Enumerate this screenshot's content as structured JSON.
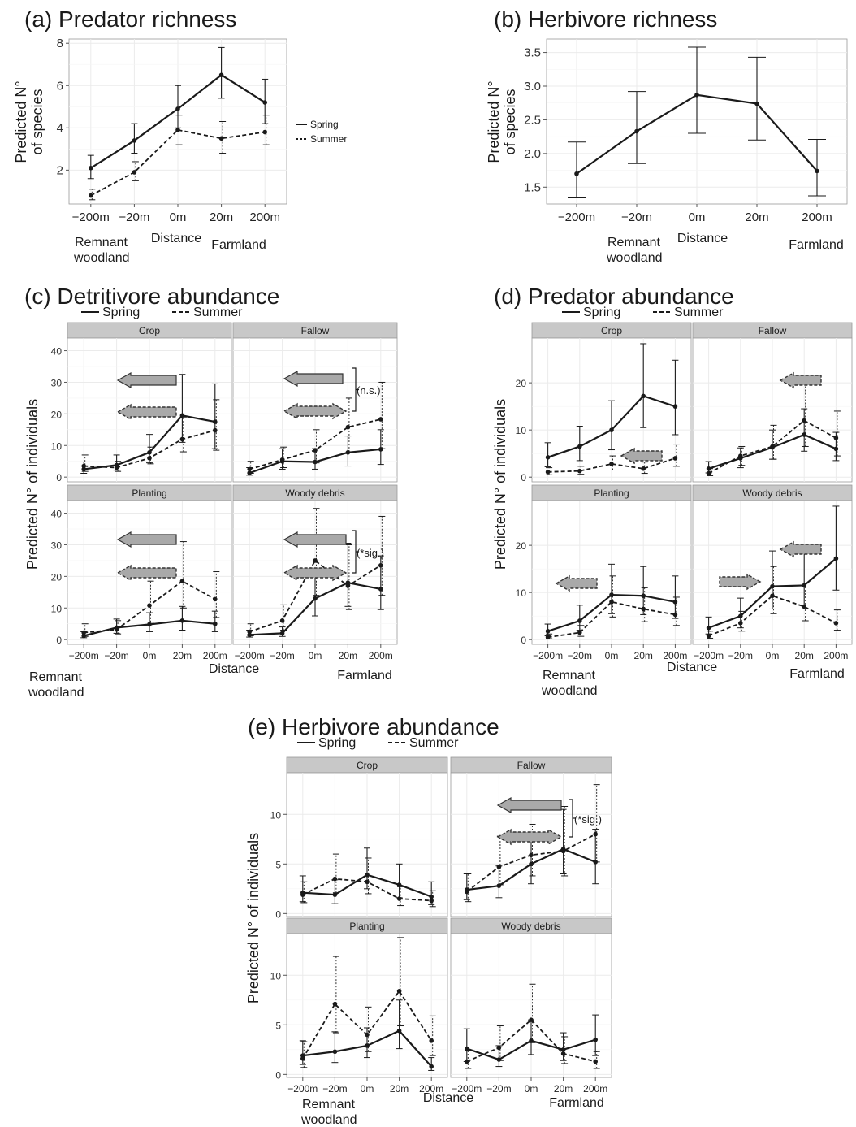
{
  "styles": {
    "spring_color": "#1a1a1a",
    "summer_color": "#1a1a1a",
    "grid_color": "#ebebeb",
    "panel_bg": "#ffffff",
    "strip_bg": "#c8c8c8",
    "arrow_fill": "#a9a9a9"
  },
  "chart_data": [
    {
      "id": "a",
      "type": "line",
      "title": "(a) Predator richness",
      "ylabel": "Predicted N° of species",
      "xlabel": "Distance",
      "x_note_left": "Remnant woodland",
      "x_note_right": "Farmland",
      "categories": [
        "−200m",
        "−20m",
        "0m",
        "20m",
        "200m"
      ],
      "ylim": [
        0.4,
        8.2
      ],
      "yticks": [
        2,
        4,
        6,
        8
      ],
      "ytick_labels": [
        "2",
        "4",
        "6",
        "8"
      ],
      "legend": {
        "position": "right",
        "entries": [
          "Spring",
          "Summer"
        ]
      },
      "series": [
        {
          "name": "Spring",
          "dash": false,
          "values": [
            2.1,
            3.4,
            4.9,
            6.5,
            5.2
          ],
          "lower": [
            1.6,
            2.8,
            4.0,
            5.4,
            4.2
          ],
          "upper": [
            2.7,
            4.2,
            6.0,
            7.8,
            6.3
          ]
        },
        {
          "name": "Summer",
          "dash": true,
          "values": [
            0.8,
            1.9,
            3.9,
            3.5,
            3.8
          ],
          "lower": [
            0.6,
            1.5,
            3.2,
            2.8,
            3.2
          ],
          "upper": [
            1.1,
            2.4,
            4.6,
            4.3,
            4.6
          ]
        }
      ]
    },
    {
      "id": "b",
      "type": "line",
      "title": "(b) Herbivore richness",
      "ylabel": "Predicted N° of species",
      "xlabel": "Distance",
      "x_note_left": "Remnant woodland",
      "x_note_right": "Farmland",
      "categories": [
        "−200m",
        "−20m",
        "0m",
        "20m",
        "200m"
      ],
      "ylim": [
        1.25,
        3.7
      ],
      "yticks": [
        1.5,
        2.0,
        2.5,
        3.0,
        3.5
      ],
      "ytick_labels": [
        "1.5",
        "2.0",
        "2.5",
        "3.0",
        "3.5"
      ],
      "series": [
        {
          "name": "",
          "dash": false,
          "values": [
            1.7,
            2.33,
            2.87,
            2.74,
            1.74
          ],
          "lower": [
            1.34,
            1.85,
            2.3,
            2.2,
            1.37
          ],
          "upper": [
            2.17,
            2.92,
            3.58,
            3.43,
            2.21
          ]
        }
      ]
    },
    {
      "id": "c",
      "type": "line",
      "title": "(c) Detritivore abundance",
      "ylabel": "Predicted N° of individuals",
      "xlabel": "Distance",
      "x_note_left": "Remnant woodland",
      "x_note_right": "Farmland",
      "categories": [
        "−200m",
        "−20m",
        "0m",
        "20m",
        "200m"
      ],
      "legend": {
        "position": "top",
        "entries": [
          "Spring",
          "Summer"
        ]
      },
      "ylim": [
        -1.5,
        44
      ],
      "yticks": [
        0,
        10,
        20,
        30,
        40
      ],
      "ytick_labels": [
        "0",
        "10",
        "20",
        "30",
        "40"
      ],
      "facets": [
        {
          "label": "Crop",
          "series": [
            {
              "name": "Spring",
              "dash": false,
              "values": [
                2.5,
                3.8,
                7.8,
                19.5,
                17.5
              ],
              "lower": [
                1.2,
                2.2,
                4.5,
                11.0,
                9.0
              ],
              "upper": [
                4.8,
                7.0,
                13.5,
                32.5,
                29.5
              ]
            },
            {
              "name": "Summer",
              "dash": true,
              "values": [
                3.5,
                3.0,
                6.0,
                12.0,
                14.8
              ],
              "lower": [
                1.8,
                1.8,
                4.2,
                8.0,
                8.5
              ],
              "upper": [
                7.0,
                5.0,
                9.5,
                19.0,
                24.5
              ]
            }
          ],
          "annotation": ""
        },
        {
          "label": "Fallow",
          "series": [
            {
              "name": "Spring",
              "dash": false,
              "values": [
                1.3,
                5.0,
                4.8,
                7.8,
                8.8
              ],
              "lower": [
                0.6,
                2.5,
                2.5,
                3.5,
                4.0
              ],
              "upper": [
                3.0,
                9.0,
                9.0,
                13.0,
                15.0
              ]
            },
            {
              "name": "Summer",
              "dash": true,
              "values": [
                2.5,
                5.5,
                8.5,
                15.8,
                18.3
              ],
              "lower": [
                1.2,
                3.0,
                4.5,
                8.0,
                9.0
              ],
              "upper": [
                5.0,
                9.5,
                15.0,
                25.0,
                30.0
              ]
            }
          ],
          "annotation": "(n.s.)"
        },
        {
          "label": "Planting",
          "series": [
            {
              "name": "Spring",
              "dash": false,
              "values": [
                1.2,
                3.8,
                4.8,
                6.0,
                5.0
              ],
              "lower": [
                0.6,
                2.0,
                2.5,
                3.0,
                2.5
              ],
              "upper": [
                2.5,
                6.5,
                8.5,
                10.5,
                9.0
              ]
            },
            {
              "name": "Summer",
              "dash": true,
              "values": [
                2.2,
                3.2,
                10.8,
                18.5,
                12.8
              ],
              "lower": [
                1.0,
                1.8,
                5.5,
                10.0,
                7.0
              ],
              "upper": [
                5.0,
                6.0,
                18.5,
                31.0,
                21.5
              ]
            }
          ],
          "annotation": ""
        },
        {
          "label": "Woody debris",
          "series": [
            {
              "name": "Spring",
              "dash": false,
              "values": [
                1.5,
                2.0,
                13.0,
                18.0,
                16.0
              ],
              "lower": [
                0.8,
                1.0,
                7.5,
                10.5,
                9.5
              ],
              "upper": [
                3.0,
                4.0,
                22.5,
                30.5,
                26.5
              ]
            },
            {
              "name": "Summer",
              "dash": true,
              "values": [
                2.5,
                6.0,
                25.0,
                17.0,
                23.5
              ],
              "lower": [
                1.2,
                3.0,
                14.0,
                9.5,
                14.0
              ],
              "upper": [
                5.0,
                11.0,
                41.5,
                30.0,
                39.0
              ]
            }
          ],
          "annotation": "(*sig.)"
        }
      ]
    },
    {
      "id": "d",
      "type": "line",
      "title": "(d) Predator abundance",
      "ylabel": "Predicted N° of individuals",
      "xlabel": "Distance",
      "x_note_left": "Remnant woodland",
      "x_note_right": "Farmland",
      "categories": [
        "−200m",
        "−20m",
        "0m",
        "20m",
        "200m"
      ],
      "legend": {
        "position": "top",
        "entries": [
          "Spring",
          "Summer"
        ]
      },
      "ylim": [
        -1.0,
        29.5
      ],
      "yticks": [
        0,
        10,
        20
      ],
      "ytick_labels": [
        "0",
        "10",
        "20"
      ],
      "facets": [
        {
          "label": "Crop",
          "series": [
            {
              "name": "Spring",
              "dash": false,
              "values": [
                4.2,
                6.5,
                10.0,
                17.2,
                15.0
              ],
              "lower": [
                2.2,
                3.5,
                5.8,
                10.5,
                9.0
              ],
              "upper": [
                7.3,
                10.8,
                16.2,
                28.3,
                24.8
              ]
            },
            {
              "name": "Summer",
              "dash": true,
              "values": [
                1.1,
                1.3,
                2.8,
                1.8,
                4.0
              ],
              "lower": [
                0.5,
                0.6,
                1.5,
                0.8,
                2.3
              ],
              "upper": [
                2.0,
                2.3,
                4.5,
                3.2,
                7.0
              ]
            }
          ]
        },
        {
          "label": "Fallow",
          "series": [
            {
              "name": "Spring",
              "dash": false,
              "values": [
                1.8,
                4.0,
                6.3,
                9.0,
                6.0
              ],
              "lower": [
                0.9,
                2.0,
                3.8,
                5.5,
                3.5
              ],
              "upper": [
                3.3,
                6.2,
                10.0,
                14.5,
                9.5
              ]
            },
            {
              "name": "Summer",
              "dash": true,
              "values": [
                0.8,
                4.5,
                6.5,
                12.0,
                8.3
              ],
              "lower": [
                0.3,
                2.5,
                3.8,
                6.5,
                4.5
              ],
              "upper": [
                1.8,
                6.5,
                11.0,
                20.3,
                14.0
              ]
            }
          ]
        },
        {
          "label": "Planting",
          "series": [
            {
              "name": "Spring",
              "dash": false,
              "values": [
                1.8,
                4.0,
                9.5,
                9.3,
                8.0
              ],
              "lower": [
                0.8,
                2.0,
                5.5,
                5.3,
                4.5
              ],
              "upper": [
                3.3,
                7.3,
                16.0,
                15.5,
                13.5
              ]
            },
            {
              "name": "Summer",
              "dash": true,
              "values": [
                0.5,
                1.5,
                8.0,
                6.5,
                5.3
              ],
              "lower": [
                0.2,
                0.7,
                4.8,
                3.8,
                3.0
              ],
              "upper": [
                1.2,
                3.0,
                13.5,
                11.0,
                9.0
              ]
            }
          ]
        },
        {
          "label": "Woody debris",
          "series": [
            {
              "name": "Spring",
              "dash": false,
              "values": [
                2.5,
                5.0,
                11.3,
                11.5,
                17.2
              ],
              "lower": [
                1.2,
                2.5,
                6.5,
                6.5,
                10.5
              ],
              "upper": [
                4.8,
                8.8,
                18.8,
                19.2,
                28.3
              ]
            },
            {
              "name": "Summer",
              "dash": true,
              "values": [
                0.8,
                3.5,
                9.3,
                7.0,
                3.5
              ],
              "lower": [
                0.3,
                1.8,
                5.5,
                4.0,
                2.0
              ],
              "upper": [
                1.8,
                6.0,
                15.5,
                12.0,
                6.3
              ]
            }
          ]
        }
      ]
    },
    {
      "id": "e",
      "type": "line",
      "title": "(e) Herbivore abundance",
      "ylabel": "Predicted N° of individuals",
      "xlabel": "Distance",
      "x_note_left": "Remnant woodland",
      "x_note_right": "Farmland",
      "categories": [
        "−200m",
        "−20m",
        "0m",
        "20m",
        "200m"
      ],
      "legend": {
        "position": "top",
        "entries": [
          "Spring",
          "Summer"
        ]
      },
      "ylim": [
        -0.3,
        14.2
      ],
      "yticks": [
        0,
        5,
        10
      ],
      "ytick_labels": [
        "0",
        "5",
        "10"
      ],
      "facets": [
        {
          "label": "Crop",
          "series": [
            {
              "name": "Spring",
              "dash": false,
              "values": [
                2.1,
                1.9,
                3.9,
                2.9,
                1.7
              ],
              "lower": [
                1.2,
                1.0,
                2.5,
                1.6,
                0.9
              ],
              "upper": [
                3.8,
                3.4,
                6.6,
                5.0,
                3.2
              ]
            },
            {
              "name": "Summer",
              "dash": true,
              "values": [
                1.9,
                3.5,
                3.2,
                1.5,
                1.3
              ],
              "lower": [
                1.1,
                2.1,
                2.0,
                0.8,
                0.7
              ],
              "upper": [
                3.2,
                6.0,
                5.6,
                2.7,
                2.3
              ]
            }
          ],
          "annotation": ""
        },
        {
          "label": "Fallow",
          "series": [
            {
              "name": "Spring",
              "dash": false,
              "values": [
                2.4,
                2.8,
                5.0,
                6.5,
                5.2
              ],
              "lower": [
                1.4,
                1.6,
                3.0,
                4.0,
                3.0
              ],
              "upper": [
                4.0,
                4.8,
                8.2,
                10.5,
                8.5
              ]
            },
            {
              "name": "Summer",
              "dash": true,
              "values": [
                2.2,
                4.7,
                5.9,
                6.3,
                8.0
              ],
              "lower": [
                1.2,
                2.9,
                3.8,
                3.8,
                5.2
              ],
              "upper": [
                4.0,
                7.8,
                9.0,
                10.8,
                13.0
              ]
            }
          ],
          "annotation": "(*sig.)"
        },
        {
          "label": "Planting",
          "series": [
            {
              "name": "Spring",
              "dash": false,
              "values": [
                1.9,
                2.3,
                2.9,
                4.4,
                0.8
              ],
              "lower": [
                1.0,
                1.2,
                1.7,
                2.6,
                0.4
              ],
              "upper": [
                3.4,
                4.3,
                4.7,
                7.5,
                1.7
              ]
            },
            {
              "name": "Summer",
              "dash": true,
              "values": [
                1.6,
                7.1,
                4.0,
                8.4,
                3.4
              ],
              "lower": [
                0.7,
                4.2,
                2.3,
                4.9,
                1.9
              ],
              "upper": [
                3.3,
                11.9,
                6.8,
                13.8,
                5.9
              ]
            }
          ],
          "annotation": ""
        },
        {
          "label": "Woody debris",
          "series": [
            {
              "name": "Spring",
              "dash": false,
              "values": [
                2.6,
                1.5,
                3.4,
                2.5,
                3.5
              ],
              "lower": [
                1.3,
                0.8,
                2.0,
                1.4,
                1.9
              ],
              "upper": [
                4.6,
                2.9,
                5.5,
                4.2,
                6.0
              ]
            },
            {
              "name": "Summer",
              "dash": true,
              "values": [
                1.3,
                2.7,
                5.5,
                2.1,
                1.3
              ],
              "lower": [
                0.6,
                1.4,
                3.2,
                1.1,
                0.6
              ],
              "upper": [
                2.4,
                4.9,
                9.1,
                3.8,
                2.3
              ]
            }
          ],
          "annotation": ""
        }
      ]
    }
  ]
}
